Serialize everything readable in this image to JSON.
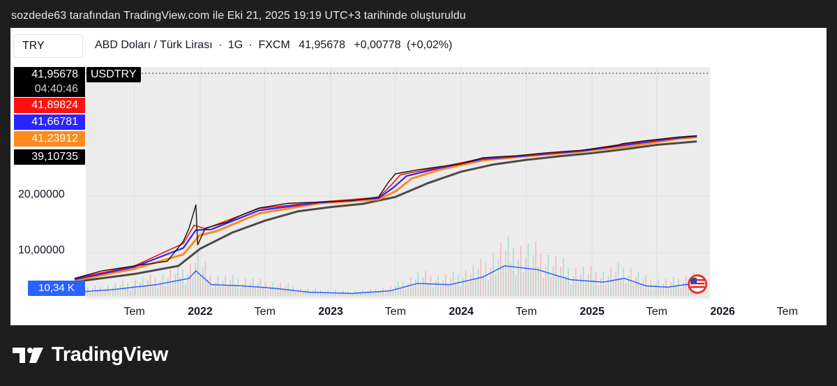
{
  "header": {
    "caption": "sozdede63 tarafından TradingView.com ile Eki 21, 2025 19:19 UTC+3 tarihinde oluşturuldu"
  },
  "toolbar": {
    "symbol_input": "TRY"
  },
  "legend": {
    "pair": "ABD Doları / Türk Lirası",
    "interval": "1G",
    "exchange": "FXCM",
    "price": "41,95678",
    "change": "+0,00778",
    "change_pct": "(+0,02%)"
  },
  "price_labels": {
    "last": "41,95678",
    "countdown": "04:40:46",
    "ma_red": "41,89824",
    "ma_blue": "41,66781",
    "ma_orange": "41,23912",
    "ma_dark": "39,10735"
  },
  "symbol_tag": "USDTRY",
  "volume_label": "10,34 K",
  "brand": {
    "name": "TradingView"
  },
  "colors": {
    "price_line": "#111111",
    "ma_red": "#ff1010",
    "ma_blue": "#2a24ff",
    "ma_orange": "#ff8a1d",
    "ma_dark": "#4a4a4a",
    "volume_line": "#2962ff",
    "plot_bg": "#ececec"
  },
  "chart_data": {
    "type": "line",
    "title": "ABD Doları / Türk Lirası · 1G · FXCM",
    "y_ticks": [
      "10,00000",
      "20,00000"
    ],
    "y_scale": "log",
    "x_ticks": [
      {
        "label": "Tem",
        "date": "2021-07-01",
        "bold": false
      },
      {
        "label": "2022",
        "date": "2022-01-01",
        "bold": true
      },
      {
        "label": "Tem",
        "date": "2022-07-01",
        "bold": false
      },
      {
        "label": "2023",
        "date": "2023-01-01",
        "bold": true
      },
      {
        "label": "Tem",
        "date": "2023-07-01",
        "bold": false
      },
      {
        "label": "2024",
        "date": "2024-01-01",
        "bold": true
      },
      {
        "label": "Tem",
        "date": "2024-07-01",
        "bold": false
      },
      {
        "label": "2025",
        "date": "2025-01-01",
        "bold": true
      },
      {
        "label": "Tem",
        "date": "2025-07-01",
        "bold": false
      },
      {
        "label": "2026",
        "date": "2026-01-01",
        "bold": true
      },
      {
        "label": "Tem",
        "date": "2026-07-01",
        "bold": false
      }
    ],
    "series": [
      {
        "name": "USDTRY",
        "x": [
          "2021-01-15",
          "2021-04-01",
          "2021-07-01",
          "2021-10-01",
          "2021-11-15",
          "2021-12-01",
          "2021-12-20",
          "2021-12-25",
          "2022-01-15",
          "2022-03-15",
          "2022-05-01",
          "2022-06-15",
          "2022-09-01",
          "2022-12-01",
          "2023-03-01",
          "2023-05-15",
          "2023-06-10",
          "2023-07-01",
          "2023-09-01",
          "2023-11-01",
          "2024-01-01",
          "2024-03-01",
          "2024-04-01",
          "2024-06-01",
          "2024-09-01",
          "2024-12-01",
          "2025-03-15",
          "2025-03-25",
          "2025-06-01",
          "2025-09-01",
          "2025-10-21"
        ],
        "values": [
          7.3,
          8.0,
          8.5,
          9.0,
          11.5,
          13.5,
          18.0,
          11.0,
          13.5,
          14.5,
          16.0,
          17.3,
          18.3,
          18.6,
          18.9,
          19.8,
          23.5,
          26.3,
          27.6,
          28.7,
          29.7,
          32.0,
          32.3,
          32.8,
          34.1,
          35.1,
          37.2,
          38.0,
          39.5,
          41.3,
          41.96
        ]
      },
      {
        "name": "MA red",
        "x": [
          "2021-01-15",
          "2021-07-01",
          "2021-11-15",
          "2021-12-15",
          "2022-01-15",
          "2022-06-15",
          "2022-12-01",
          "2023-05-15",
          "2023-06-20",
          "2023-07-15",
          "2023-11-01",
          "2024-03-01",
          "2024-06-01",
          "2024-12-01",
          "2025-03-25",
          "2025-09-01",
          "2025-10-21"
        ],
        "values": [
          7.3,
          8.5,
          11.2,
          14.0,
          13.4,
          17.2,
          18.6,
          19.7,
          23.0,
          26.0,
          28.5,
          31.8,
          32.7,
          35.0,
          37.8,
          41.2,
          41.9
        ]
      },
      {
        "name": "MA blue",
        "x": [
          "2021-01-15",
          "2021-07-01",
          "2021-11-15",
          "2021-12-20",
          "2022-02-01",
          "2022-06-15",
          "2022-12-01",
          "2023-05-15",
          "2023-06-25",
          "2023-08-01",
          "2023-11-01",
          "2024-03-01",
          "2024-06-01",
          "2024-12-01",
          "2025-04-01",
          "2025-09-01",
          "2025-10-21"
        ],
        "values": [
          7.2,
          8.4,
          10.6,
          13.2,
          13.3,
          16.8,
          18.5,
          19.5,
          22.2,
          25.6,
          28.2,
          31.5,
          32.5,
          34.8,
          37.4,
          40.9,
          41.67
        ]
      },
      {
        "name": "MA orange",
        "x": [
          "2021-01-15",
          "2021-07-01",
          "2021-11-15",
          "2021-12-31",
          "2022-02-15",
          "2022-06-15",
          "2022-12-01",
          "2023-05-15",
          "2023-07-01",
          "2023-08-15",
          "2023-11-01",
          "2024-03-01",
          "2024-06-01",
          "2024-12-01",
          "2025-04-15",
          "2025-09-01",
          "2025-10-21"
        ],
        "values": [
          7.1,
          8.2,
          9.8,
          12.4,
          13.0,
          16.2,
          18.3,
          19.2,
          21.2,
          24.8,
          27.6,
          31.0,
          32.2,
          34.5,
          36.8,
          40.4,
          41.24
        ]
      },
      {
        "name": "MA dark",
        "x": [
          "2021-01-15",
          "2021-07-01",
          "2021-11-01",
          "2022-01-01",
          "2022-04-01",
          "2022-07-01",
          "2022-10-01",
          "2023-01-01",
          "2023-04-01",
          "2023-07-01",
          "2023-10-01",
          "2024-01-01",
          "2024-04-01",
          "2024-07-01",
          "2024-10-01",
          "2025-01-01",
          "2025-04-01",
          "2025-07-01",
          "2025-10-21"
        ],
        "values": [
          7.0,
          7.7,
          8.5,
          10.5,
          12.8,
          14.8,
          16.6,
          17.5,
          18.2,
          19.8,
          23.5,
          27.0,
          29.5,
          31.2,
          32.6,
          33.9,
          35.5,
          37.5,
          39.1
        ]
      }
    ],
    "volume": {
      "name": "Volume",
      "x": [
        "2021-01-15",
        "2021-05-01",
        "2021-09-01",
        "2021-12-01",
        "2021-12-20",
        "2022-02-01",
        "2022-05-01",
        "2022-08-01",
        "2022-11-01",
        "2023-03-01",
        "2023-06-15",
        "2023-09-01",
        "2023-12-01",
        "2024-03-01",
        "2024-05-01",
        "2024-08-01",
        "2024-11-01",
        "2025-02-01",
        "2025-04-01",
        "2025-06-01",
        "2025-08-01",
        "2025-10-21"
      ],
      "values": [
        3,
        5,
        9,
        14,
        20,
        9,
        8,
        6,
        3,
        2,
        4,
        10,
        9,
        15,
        24,
        21,
        13,
        11,
        14,
        8,
        7,
        10.34
      ]
    }
  }
}
